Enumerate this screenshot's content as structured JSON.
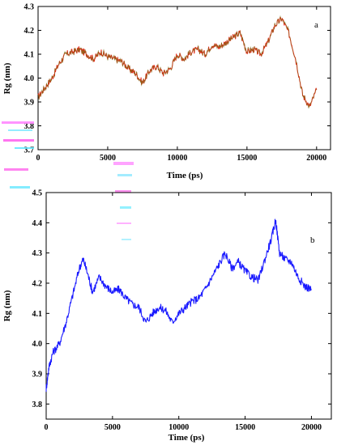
{
  "chart_data": [
    {
      "type": "line",
      "panel_label": "a",
      "xlabel": "Time (ps)",
      "ylabel": "Rg (nm)",
      "xlim": [
        0,
        21000
      ],
      "ylim": [
        3.7,
        4.3
      ],
      "xticks": [
        0,
        5000,
        10000,
        15000,
        20000
      ],
      "yticks": [
        3.7,
        3.8,
        3.9,
        4.0,
        4.1,
        4.2,
        4.3
      ],
      "xtick_labels": [
        "0",
        "5000",
        "10000",
        "15000",
        "20000"
      ],
      "ytick_labels": [
        "3.7",
        "3.8",
        "3.9",
        "4.0",
        "4.1",
        "4.2",
        "4.3"
      ],
      "grid": false,
      "series": [
        {
          "color": "#e8281c",
          "overlay_color": "#6b7a1a",
          "x": [
            0,
            500,
            1000,
            1500,
            2000,
            2500,
            3000,
            3500,
            4000,
            4500,
            5000,
            5500,
            6000,
            6500,
            7000,
            7500,
            8000,
            8500,
            9000,
            9500,
            10000,
            10500,
            11000,
            11500,
            12000,
            12500,
            13000,
            13500,
            14000,
            14500,
            15000,
            15500,
            16000,
            16500,
            17000,
            17500,
            18000,
            18500,
            19000,
            19500,
            20000
          ],
          "y": [
            3.92,
            3.96,
            4.0,
            4.06,
            4.1,
            4.11,
            4.12,
            4.1,
            4.08,
            4.11,
            4.09,
            4.08,
            4.07,
            4.04,
            4.02,
            3.98,
            4.03,
            4.05,
            4.02,
            4.04,
            4.1,
            4.08,
            4.11,
            4.12,
            4.1,
            4.14,
            4.13,
            4.15,
            4.17,
            4.19,
            4.11,
            4.12,
            4.1,
            4.15,
            4.22,
            4.25,
            4.19,
            4.08,
            3.93,
            3.88,
            3.95
          ]
        }
      ]
    },
    {
      "type": "line",
      "panel_label": "b",
      "xlabel": "Time (ps)",
      "ylabel": "Rg (nm)",
      "xlim": [
        0,
        21500
      ],
      "ylim": [
        3.75,
        4.5
      ],
      "xticks": [
        0,
        5000,
        10000,
        15000,
        20000
      ],
      "yticks": [
        3.8,
        3.9,
        4.0,
        4.1,
        4.2,
        4.3,
        4.4,
        4.5
      ],
      "xtick_labels": [
        "0",
        "5000",
        "10000",
        "15000",
        "20000"
      ],
      "ytick_labels": [
        "3.8",
        "3.9",
        "4.0",
        "4.1",
        "4.2",
        "4.3",
        "4.4",
        "4.5"
      ],
      "grid": false,
      "series": [
        {
          "color": "#1a1aff",
          "x": [
            0,
            200,
            500,
            1000,
            1500,
            2000,
            2500,
            2800,
            3200,
            3500,
            4000,
            4500,
            5000,
            5500,
            6000,
            6500,
            7000,
            7500,
            8000,
            8500,
            9000,
            9500,
            10000,
            10500,
            11000,
            11500,
            12000,
            12500,
            13000,
            13500,
            14000,
            14500,
            15000,
            15500,
            16000,
            16500,
            17000,
            17300,
            17600,
            18000,
            18500,
            19000,
            19500,
            20000
          ],
          "y": [
            3.85,
            3.92,
            3.97,
            4.0,
            4.07,
            4.16,
            4.25,
            4.28,
            4.22,
            4.17,
            4.22,
            4.19,
            4.17,
            4.18,
            4.15,
            4.13,
            4.12,
            4.07,
            4.1,
            4.12,
            4.11,
            4.07,
            4.1,
            4.12,
            4.14,
            4.15,
            4.18,
            4.22,
            4.26,
            4.3,
            4.25,
            4.27,
            4.24,
            4.22,
            4.21,
            4.28,
            4.35,
            4.41,
            4.3,
            4.28,
            4.27,
            4.22,
            4.19,
            4.18
          ]
        }
      ]
    }
  ]
}
